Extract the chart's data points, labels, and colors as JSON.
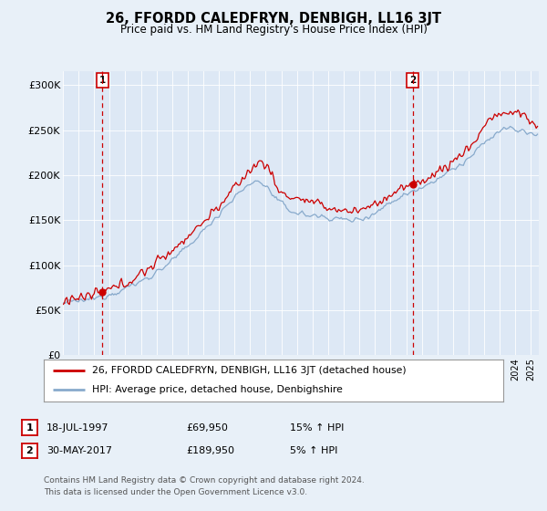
{
  "title": "26, FFORDD CALEDFRYN, DENBIGH, LL16 3JT",
  "subtitle": "Price paid vs. HM Land Registry's House Price Index (HPI)",
  "ylabel_ticks": [
    "£0",
    "£50K",
    "£100K",
    "£150K",
    "£200K",
    "£250K",
    "£300K"
  ],
  "y_values": [
    0,
    50000,
    100000,
    150000,
    200000,
    250000,
    300000
  ],
  "ylim": [
    0,
    315000
  ],
  "xlim_start": 1995.0,
  "xlim_end": 2025.5,
  "sale1_date": 1997.54,
  "sale1_price": 69950,
  "sale1_label": "1",
  "sale2_date": 2017.41,
  "sale2_price": 189950,
  "sale2_label": "2",
  "legend_line1": "26, FFORDD CALEDFRYN, DENBIGH, LL16 3JT (detached house)",
  "legend_line2": "HPI: Average price, detached house, Denbighshire",
  "table_row1": [
    "1",
    "18-JUL-1997",
    "£69,950",
    "15% ↑ HPI"
  ],
  "table_row2": [
    "2",
    "30-MAY-2017",
    "£189,950",
    "5% ↑ HPI"
  ],
  "footer": "Contains HM Land Registry data © Crown copyright and database right 2024.\nThis data is licensed under the Open Government Licence v3.0.",
  "line_color_red": "#cc0000",
  "line_color_blue": "#88aacc",
  "marker_color": "#cc0000",
  "dashed_color": "#cc0000",
  "background_color": "#e8f0f8",
  "plot_bg_color": "#dde8f5"
}
